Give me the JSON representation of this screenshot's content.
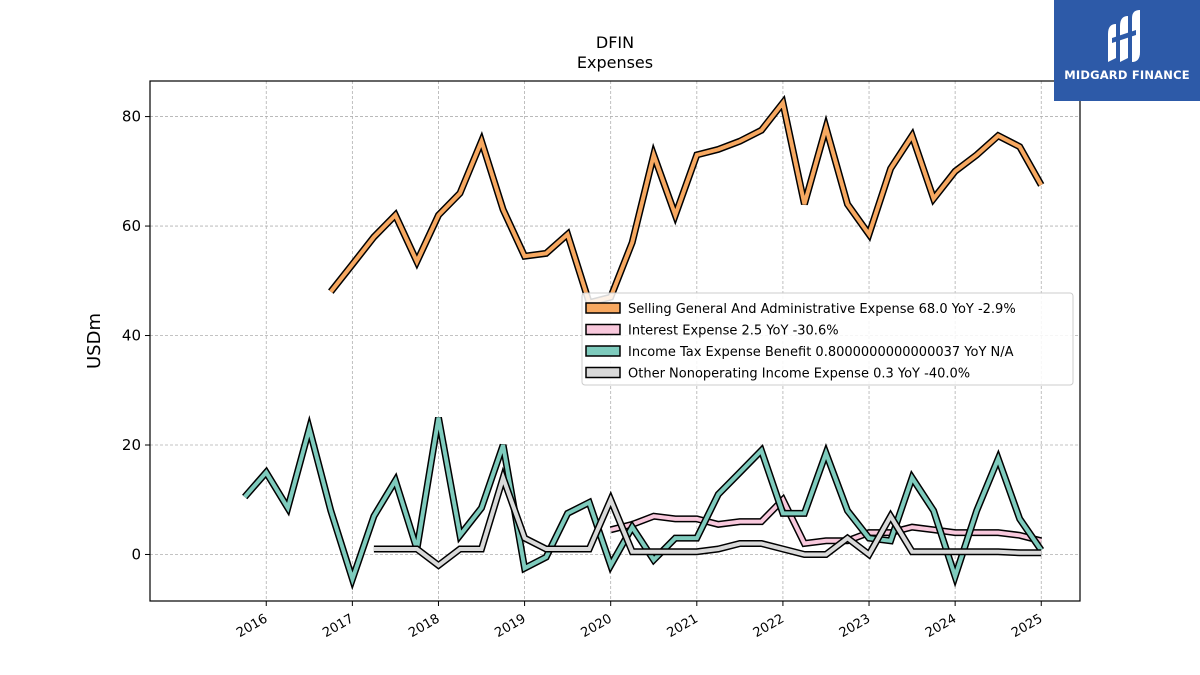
{
  "chart_data": {
    "type": "line",
    "title": "DFIN",
    "subtitle": "Expenses",
    "xlabel": "",
    "ylabel": "USDm",
    "ylim": [
      -8.5,
      86.5
    ],
    "xlim": [
      2014.65,
      2025.45
    ],
    "yticks": [
      0,
      20,
      40,
      60,
      80
    ],
    "xticks": [
      "2016",
      "2017",
      "2018",
      "2019",
      "2020",
      "2021",
      "2022",
      "2023",
      "2024",
      "2025"
    ],
    "grid": true,
    "legend_position": "center-right",
    "series": [
      {
        "name": "Selling General And Administrative Expense",
        "legend_label": "Selling General And Administrative Expense  68.0 YoY -2.9%",
        "color": "#f7a860",
        "x": [
          2016.75,
          2017.0,
          2017.25,
          2017.5,
          2017.75,
          2018.0,
          2018.25,
          2018.5,
          2018.75,
          2019.0,
          2019.25,
          2019.5,
          2019.75,
          2020.0,
          2020.25,
          2020.5,
          2020.75,
          2021.0,
          2021.25,
          2021.5,
          2021.75,
          2022.0,
          2022.25,
          2022.5,
          2022.75,
          2023.0,
          2023.25,
          2023.5,
          2023.75,
          2024.0,
          2024.25,
          2024.5,
          2024.75,
          2025.0
        ],
        "y": [
          48.0,
          53.0,
          58.0,
          62.0,
          53.5,
          62.0,
          66.0,
          75.5,
          63.0,
          54.5,
          55.0,
          58.5,
          46.0,
          47.0,
          57.0,
          73.0,
          62.0,
          73.0,
          74.0,
          75.5,
          77.5,
          82.5,
          64.0,
          78.0,
          64.0,
          58.5,
          70.5,
          76.5,
          65.0,
          70.0,
          73.0,
          76.5,
          74.5,
          67.5
        ]
      },
      {
        "name": "Interest Expense",
        "legend_label": "Interest Expense  2.5 YoY -30.6%",
        "color": "#f8c8dc",
        "x": [
          2020.0,
          2020.25,
          2020.5,
          2020.75,
          2021.0,
          2021.25,
          2021.5,
          2021.75,
          2022.0,
          2022.25,
          2022.5,
          2022.75,
          2023.0,
          2023.25,
          2023.5,
          2023.75,
          2024.0,
          2024.25,
          2024.5,
          2024.75,
          2025.0
        ],
        "y": [
          4.5,
          5.5,
          7.0,
          6.5,
          6.5,
          5.5,
          6.0,
          6.0,
          10.0,
          2.0,
          2.5,
          2.5,
          4.0,
          4.0,
          5.0,
          4.5,
          4.0,
          4.0,
          4.0,
          3.5,
          2.5
        ]
      },
      {
        "name": "Income Tax Expense Benefit",
        "legend_label": "Income Tax Expense Benefit  0.8000000000000037 YoY N/A",
        "color": "#7ecbbd",
        "x": [
          2015.75,
          2016.0,
          2016.25,
          2016.5,
          2016.75,
          2017.0,
          2017.25,
          2017.5,
          2017.75,
          2018.0,
          2018.25,
          2018.5,
          2018.75,
          2019.0,
          2019.25,
          2019.5,
          2019.75,
          2020.0,
          2020.25,
          2020.5,
          2020.75,
          2021.0,
          2021.25,
          2021.5,
          2021.75,
          2022.0,
          2022.25,
          2022.5,
          2022.75,
          2023.0,
          2023.25,
          2023.5,
          2023.75,
          2024.0,
          2024.25,
          2024.5,
          2024.75,
          2025.0
        ],
        "y": [
          10.5,
          15.0,
          8.5,
          23.0,
          8.0,
          -4.5,
          7.0,
          13.5,
          1.0,
          25.0,
          3.5,
          8.5,
          20.0,
          -2.5,
          -0.5,
          7.5,
          9.5,
          -2.0,
          5.0,
          -1.0,
          3.0,
          3.0,
          11.0,
          15.0,
          19.0,
          7.5,
          7.5,
          18.5,
          8.0,
          3.0,
          2.5,
          14.0,
          8.0,
          -4.0,
          8.0,
          17.5,
          6.5,
          0.8
        ]
      },
      {
        "name": "Other Nonoperating Income Expense",
        "legend_label": "Other Nonoperating Income Expense  0.3 YoY -40.0%",
        "color": "#d9d9d9",
        "x": [
          2017.25,
          2017.5,
          2017.75,
          2018.0,
          2018.25,
          2018.5,
          2018.75,
          2019.0,
          2019.25,
          2019.5,
          2019.75,
          2020.0,
          2020.25,
          2020.5,
          2020.75,
          2021.0,
          2021.25,
          2021.5,
          2021.75,
          2022.0,
          2022.25,
          2022.5,
          2022.75,
          2023.0,
          2023.25,
          2023.5,
          2023.75,
          2024.0,
          2024.25,
          2024.5,
          2024.75,
          2025.0
        ],
        "y": [
          1.0,
          1.0,
          1.0,
          -2.0,
          1.0,
          1.0,
          14.0,
          3.0,
          1.0,
          1.0,
          1.0,
          10.0,
          0.5,
          0.5,
          0.5,
          0.5,
          1.0,
          2.0,
          2.0,
          1.0,
          0.0,
          0.0,
          3.0,
          0.0,
          7.0,
          0.5,
          0.5,
          0.5,
          0.5,
          0.5,
          0.3,
          0.3
        ]
      }
    ]
  },
  "logo": {
    "brand_text": "MIDGARD FINANCE",
    "icon": "midgard-logo-icon"
  }
}
